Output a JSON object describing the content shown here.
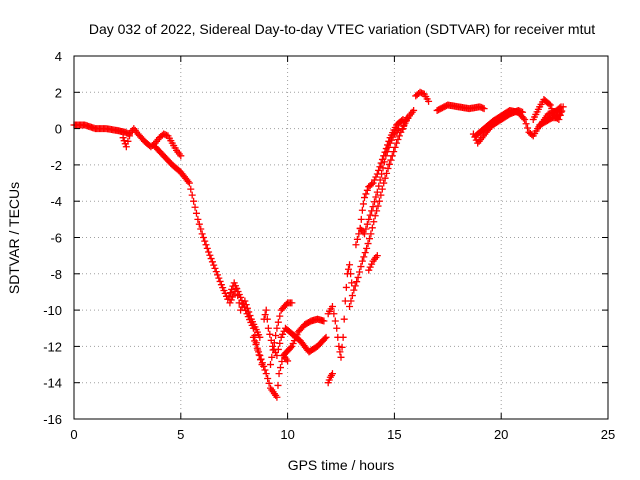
{
  "chart_data": {
    "type": "scatter",
    "title": "Day 032 of 2022, Sidereal Day-to-day VTEC variation (SDTVAR) for receiver mtut",
    "xlabel": "GPS time / hours",
    "ylabel": "SDTVAR / TECUs",
    "xlim": [
      0,
      25
    ],
    "ylim": [
      -16,
      4
    ],
    "xticks": [
      0,
      5,
      10,
      15,
      20,
      25
    ],
    "yticks": [
      -16,
      -14,
      -12,
      -10,
      -8,
      -6,
      -4,
      -2,
      0,
      2,
      4
    ],
    "grid": true,
    "marker": "plus",
    "color": "#ff0000",
    "series": [
      {
        "name": "SDTVAR",
        "segments": [
          [
            [
              0.0,
              0.2
            ],
            [
              0.5,
              0.2
            ],
            [
              1.0,
              0.0
            ],
            [
              1.5,
              0.0
            ],
            [
              2.0,
              -0.1
            ],
            [
              2.4,
              -0.2
            ],
            [
              2.6,
              -0.3
            ],
            [
              2.8,
              0.0
            ],
            [
              3.0,
              -0.3
            ],
            [
              3.3,
              -0.7
            ],
            [
              3.6,
              -1.0
            ],
            [
              3.8,
              -0.8
            ],
            [
              4.0,
              -0.5
            ],
            [
              4.2,
              -0.3
            ],
            [
              4.4,
              -0.4
            ],
            [
              4.6,
              -0.8
            ],
            [
              4.8,
              -1.2
            ],
            [
              5.0,
              -1.5
            ]
          ],
          [
            [
              2.3,
              -0.5
            ],
            [
              2.45,
              -1.0
            ],
            [
              2.6,
              -0.4
            ]
          ],
          [
            [
              3.8,
              -1.0
            ],
            [
              4.2,
              -1.5
            ],
            [
              4.6,
              -2.0
            ],
            [
              5.0,
              -2.4
            ],
            [
              5.4,
              -3.0
            ],
            [
              5.6,
              -4.0
            ],
            [
              5.8,
              -5.0
            ],
            [
              6.0,
              -5.8
            ],
            [
              6.3,
              -6.8
            ],
            [
              6.6,
              -7.7
            ],
            [
              6.9,
              -8.6
            ],
            [
              7.2,
              -9.4
            ],
            [
              7.5,
              -8.5
            ],
            [
              7.8,
              -9.3
            ],
            [
              8.1,
              -10.2
            ],
            [
              8.4,
              -11.0
            ],
            [
              8.6,
              -12.2
            ],
            [
              8.8,
              -13.0
            ]
          ],
          [
            [
              7.3,
              -9.6
            ],
            [
              7.6,
              -8.8
            ],
            [
              7.8,
              -10.0
            ],
            [
              8.0,
              -9.5
            ],
            [
              8.3,
              -10.5
            ],
            [
              8.7,
              -11.5
            ]
          ],
          [
            [
              8.4,
              -11.5
            ],
            [
              8.7,
              -12.5
            ],
            [
              9.0,
              -13.5
            ],
            [
              9.2,
              -14.3
            ],
            [
              9.5,
              -14.8
            ],
            [
              9.6,
              -13.5
            ],
            [
              9.8,
              -12.5
            ],
            [
              10.0,
              -12.8
            ]
          ],
          [
            [
              8.9,
              -10.5
            ],
            [
              9.0,
              -10.0
            ],
            [
              9.1,
              -11.0
            ],
            [
              9.3,
              -12.0
            ],
            [
              9.5,
              -12.5
            ],
            [
              9.7,
              -11.5
            ],
            [
              9.9,
              -11.0
            ],
            [
              10.2,
              -11.3
            ],
            [
              10.6,
              -11.7
            ],
            [
              11.0,
              -12.3
            ],
            [
              11.4,
              -12.0
            ],
            [
              11.8,
              -11.5
            ]
          ],
          [
            [
              9.2,
              -13.0
            ],
            [
              9.5,
              -11.0
            ],
            [
              9.7,
              -10.0
            ],
            [
              10.0,
              -9.6
            ],
            [
              10.2,
              -9.6
            ]
          ],
          [
            [
              9.8,
              -12.5
            ],
            [
              10.2,
              -12.0
            ],
            [
              10.5,
              -11.2
            ],
            [
              10.8,
              -10.8
            ],
            [
              11.1,
              -10.6
            ],
            [
              11.4,
              -10.5
            ],
            [
              11.7,
              -10.6
            ]
          ],
          [
            [
              11.9,
              -14.0
            ],
            [
              12.0,
              -13.7
            ],
            [
              12.1,
              -13.5
            ]
          ],
          [
            [
              11.9,
              -10.2
            ],
            [
              12.1,
              -9.8
            ],
            [
              12.3,
              -11.0
            ],
            [
              12.4,
              -12.0
            ],
            [
              12.5,
              -12.6
            ],
            [
              12.6,
              -11.5
            ],
            [
              12.7,
              -9.5
            ],
            [
              12.8,
              -8.0
            ],
            [
              12.9,
              -7.5
            ],
            [
              13.0,
              -8.5
            ]
          ],
          [
            [
              12.9,
              -9.8
            ],
            [
              13.1,
              -8.9
            ],
            [
              13.3,
              -8.2
            ],
            [
              13.5,
              -7.3
            ],
            [
              13.7,
              -6.6
            ],
            [
              13.9,
              -5.8
            ],
            [
              14.1,
              -4.8
            ],
            [
              14.3,
              -4.0
            ],
            [
              14.5,
              -3.0
            ],
            [
              14.7,
              -2.2
            ],
            [
              14.9,
              -1.5
            ],
            [
              15.1,
              -0.8
            ],
            [
              15.3,
              -0.2
            ],
            [
              15.5,
              0.3
            ],
            [
              15.7,
              0.7
            ],
            [
              15.9,
              1.0
            ]
          ],
          [
            [
              13.2,
              -6.4
            ],
            [
              13.4,
              -5.5
            ],
            [
              13.5,
              -4.5
            ],
            [
              13.6,
              -3.8
            ],
            [
              13.8,
              -3.2
            ],
            [
              14.0,
              -3.0
            ],
            [
              14.2,
              -2.5
            ],
            [
              14.5,
              -1.5
            ],
            [
              14.8,
              -0.5
            ],
            [
              15.1,
              0.2
            ],
            [
              15.4,
              0.5
            ]
          ],
          [
            [
              13.8,
              -7.8
            ],
            [
              14.0,
              -7.3
            ],
            [
              14.2,
              -7.0
            ]
          ],
          [
            [
              13.4,
              -5.5
            ],
            [
              13.6,
              -5.8
            ],
            [
              13.8,
              -5.0
            ],
            [
              14.0,
              -4.3
            ],
            [
              14.2,
              -3.5
            ],
            [
              14.4,
              -2.5
            ],
            [
              14.6,
              -1.5
            ],
            [
              14.8,
              -0.8
            ],
            [
              15.0,
              -0.3
            ],
            [
              15.2,
              0.0
            ]
          ],
          [
            [
              15.4,
              0.0
            ],
            [
              15.5,
              0.4
            ],
            [
              15.6,
              0.6
            ]
          ],
          [
            [
              16.0,
              1.8
            ],
            [
              16.2,
              2.0
            ],
            [
              16.4,
              1.9
            ],
            [
              16.6,
              1.5
            ]
          ],
          [
            [
              17.0,
              1.0
            ],
            [
              17.5,
              1.3
            ],
            [
              18.0,
              1.2
            ],
            [
              18.5,
              1.1
            ],
            [
              19.0,
              1.2
            ],
            [
              19.2,
              1.1
            ]
          ],
          [
            [
              18.7,
              -0.3
            ],
            [
              18.9,
              -0.8
            ],
            [
              19.1,
              -0.5
            ],
            [
              19.3,
              -0.2
            ],
            [
              19.6,
              0.2
            ],
            [
              20.0,
              0.5
            ],
            [
              20.4,
              0.8
            ],
            [
              20.8,
              1.0
            ],
            [
              21.0,
              0.9
            ]
          ],
          [
            [
              18.8,
              -0.4
            ],
            [
              19.2,
              0.0
            ],
            [
              19.6,
              0.4
            ],
            [
              20.0,
              0.7
            ],
            [
              20.4,
              1.0
            ],
            [
              20.8,
              0.9
            ],
            [
              21.1,
              0.5
            ],
            [
              21.3,
              -0.2
            ],
            [
              21.5,
              -0.4
            ],
            [
              21.7,
              0.0
            ],
            [
              21.9,
              0.3
            ],
            [
              22.2,
              0.8
            ],
            [
              22.5,
              0.9
            ],
            [
              22.8,
              1.2
            ]
          ],
          [
            [
              21.5,
              0.5
            ],
            [
              21.8,
              1.2
            ],
            [
              22.0,
              1.6
            ],
            [
              22.3,
              1.3
            ],
            [
              22.5,
              0.7
            ],
            [
              22.7,
              0.5
            ],
            [
              22.9,
              1.2
            ]
          ],
          [
            [
              21.8,
              0.2
            ],
            [
              22.1,
              0.4
            ],
            [
              22.4,
              0.6
            ],
            [
              22.6,
              0.6
            ],
            [
              22.8,
              0.9
            ]
          ]
        ]
      }
    ]
  }
}
